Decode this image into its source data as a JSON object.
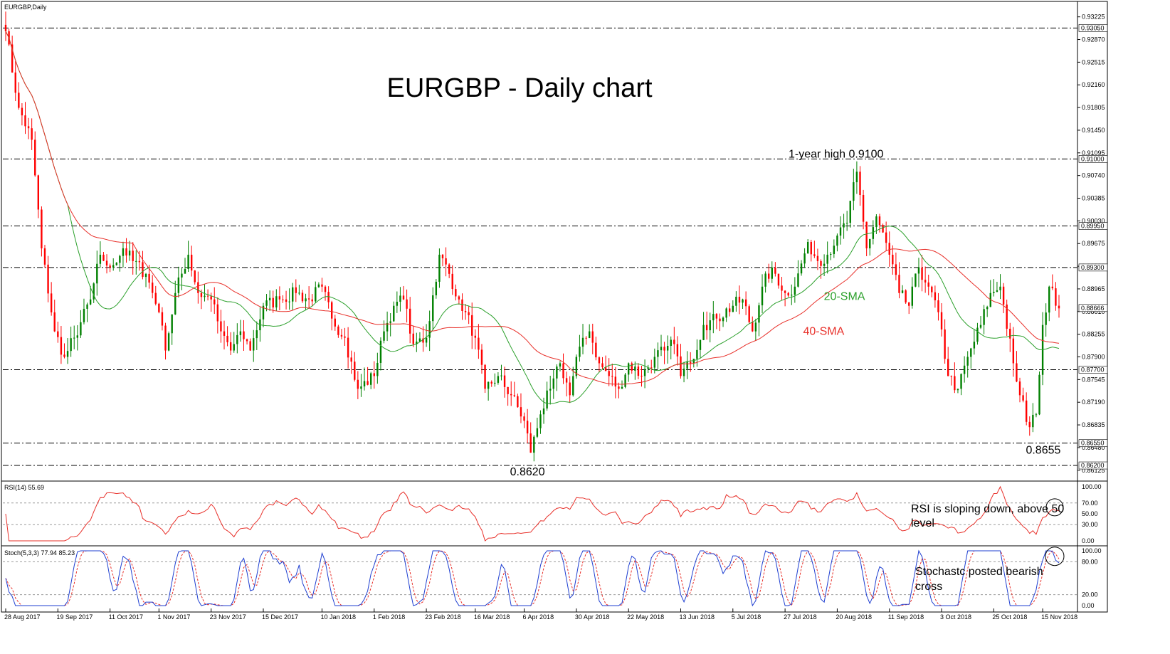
{
  "window_title": "EURGBP,Daily",
  "colors": {
    "bull": "#008000",
    "bear": "#ff0000",
    "sma20": "#2ca02c",
    "sma40": "#e8302a",
    "level_line": "#000000",
    "rsi": "#e8302a",
    "stoch_main": "#1f3fd1",
    "stoch_signal": "#e8302a"
  },
  "chart_data": [
    {
      "type": "candlestick",
      "title": "EURGBP - Daily chart",
      "ylim": [
        0.86,
        0.93422
      ],
      "y_ticks": [
        "0.93225",
        "0.92870",
        "0.92515",
        "0.92160",
        "0.91805",
        "0.91450",
        "0.91095",
        "0.90740",
        "0.90385",
        "0.90030",
        "0.89675",
        "0.89320",
        "0.88965",
        "0.88610",
        "0.88255",
        "0.87900",
        "0.87545",
        "0.87190",
        "0.86835",
        "0.86480",
        "0.86125"
      ],
      "x_ticks": [
        "28 Aug 2017",
        "19 Sep 2017",
        "11 Oct 2017",
        "1 Nov 2017",
        "23 Nov 2017",
        "15 Dec 2017",
        "10 Jan 2018",
        "1 Feb 2018",
        "23 Feb 2018",
        "16 Mar 2018",
        "6 Apr 2018",
        "30 Apr 2018",
        "22 May 2018",
        "13 Jun 2018",
        "5 Jul 2018",
        "27 Jul 2018",
        "20 Aug 2018",
        "11 Sep 2018",
        "3 Oct 2018",
        "25 Oct 2018",
        "15 Nov 2018"
      ],
      "levels": [
        {
          "value": 0.9305,
          "label": "0.93050"
        },
        {
          "value": 0.91,
          "label": "0.91000"
        },
        {
          "value": 0.8995,
          "label": "0.89950"
        },
        {
          "value": 0.893,
          "label": "0.89300"
        },
        {
          "value": 0.877,
          "label": "0.87700"
        },
        {
          "value": 0.8655,
          "label": "0.86550"
        },
        {
          "value": 0.862,
          "label": "0.86200"
        }
      ],
      "current_price": {
        "value": 0.88666,
        "label": "0.88666"
      },
      "anchors": [
        {
          "date": "28 Aug 2017",
          "close": 0.93
        },
        {
          "date": "1 Sep 2017",
          "close": 0.918
        },
        {
          "date": "7 Sep 2017",
          "close": 0.913
        },
        {
          "date": "12 Sep 2017",
          "close": 0.896
        },
        {
          "date": "18 Sep 2017",
          "close": 0.883
        },
        {
          "date": "21 Sep 2017",
          "close": 0.879
        },
        {
          "date": "26 Sep 2017",
          "close": 0.882
        },
        {
          "date": "3 Oct 2017",
          "close": 0.888
        },
        {
          "date": "6 Oct 2017",
          "close": 0.895
        },
        {
          "date": "11 Oct 2017",
          "close": 0.893
        },
        {
          "date": "17 Oct 2017",
          "close": 0.896
        },
        {
          "date": "20 Oct 2017",
          "close": 0.894
        },
        {
          "date": "26 Oct 2017",
          "close": 0.892
        },
        {
          "date": "1 Nov 2017",
          "close": 0.886
        },
        {
          "date": "3 Nov 2017",
          "close": 0.88
        },
        {
          "date": "8 Nov 2017",
          "close": 0.889
        },
        {
          "date": "14 Nov 2017",
          "close": 0.895
        },
        {
          "date": "17 Nov 2017",
          "close": 0.889
        },
        {
          "date": "23 Nov 2017",
          "close": 0.888
        },
        {
          "date": "28 Nov 2017",
          "close": 0.883
        },
        {
          "date": "1 Dec 2017",
          "close": 0.88
        },
        {
          "date": "6 Dec 2017",
          "close": 0.883
        },
        {
          "date": "11 Dec 2017",
          "close": 0.88
        },
        {
          "date": "15 Dec 2017",
          "close": 0.887
        },
        {
          "date": "22 Dec 2017",
          "close": 0.888
        },
        {
          "date": "29 Dec 2017",
          "close": 0.889
        },
        {
          "date": "4 Jan 2018",
          "close": 0.888
        },
        {
          "date": "10 Jan 2018",
          "close": 0.89
        },
        {
          "date": "15 Jan 2018",
          "close": 0.885
        },
        {
          "date": "19 Jan 2018",
          "close": 0.882
        },
        {
          "date": "25 Jan 2018",
          "close": 0.874
        },
        {
          "date": "1 Feb 2018",
          "close": 0.876
        },
        {
          "date": "6 Feb 2018",
          "close": 0.883
        },
        {
          "date": "9 Feb 2018",
          "close": 0.887
        },
        {
          "date": "14 Feb 2018",
          "close": 0.888
        },
        {
          "date": "19 Feb 2018",
          "close": 0.881
        },
        {
          "date": "23 Feb 2018",
          "close": 0.882
        },
        {
          "date": "1 Mar 2018",
          "close": 0.895
        },
        {
          "date": "6 Mar 2018",
          "close": 0.892
        },
        {
          "date": "9 Mar 2018",
          "close": 0.888
        },
        {
          "date": "13 Mar 2018",
          "close": 0.886
        },
        {
          "date": "16 Mar 2018",
          "close": 0.882
        },
        {
          "date": "21 Mar 2018",
          "close": 0.874
        },
        {
          "date": "27 Mar 2018",
          "close": 0.876
        },
        {
          "date": "2 Apr 2018",
          "close": 0.873
        },
        {
          "date": "6 Apr 2018",
          "close": 0.869
        },
        {
          "date": "10 Apr 2018",
          "close": 0.864
        },
        {
          "date": "13 Apr 2018",
          "close": 0.87
        },
        {
          "date": "18 Apr 2018",
          "close": 0.874
        },
        {
          "date": "23 Apr 2018",
          "close": 0.878
        },
        {
          "date": "26 Apr 2018",
          "close": 0.873
        },
        {
          "date": "30 Apr 2018",
          "close": 0.879
        },
        {
          "date": "4 May 2018",
          "close": 0.883
        },
        {
          "date": "9 May 2018",
          "close": 0.878
        },
        {
          "date": "14 May 2018",
          "close": 0.876
        },
        {
          "date": "17 May 2018",
          "close": 0.874
        },
        {
          "date": "22 May 2018",
          "close": 0.878
        },
        {
          "date": "28 May 2018",
          "close": 0.876
        },
        {
          "date": "1 Jun 2018",
          "close": 0.879
        },
        {
          "date": "6 Jun 2018",
          "close": 0.88
        },
        {
          "date": "11 Jun 2018",
          "close": 0.881
        },
        {
          "date": "13 Jun 2018",
          "close": 0.876
        },
        {
          "date": "18 Jun 2018",
          "close": 0.878
        },
        {
          "date": "22 Jun 2018",
          "close": 0.884
        },
        {
          "date": "28 Jun 2018",
          "close": 0.885
        },
        {
          "date": "5 Jul 2018",
          "close": 0.887
        },
        {
          "date": "10 Jul 2018",
          "close": 0.888
        },
        {
          "date": "13 Jul 2018",
          "close": 0.883
        },
        {
          "date": "18 Jul 2018",
          "close": 0.89
        },
        {
          "date": "23 Jul 2018",
          "close": 0.893
        },
        {
          "date": "27 Jul 2018",
          "close": 0.889
        },
        {
          "date": "1 Aug 2018",
          "close": 0.89
        },
        {
          "date": "7 Aug 2018",
          "close": 0.897
        },
        {
          "date": "10 Aug 2018",
          "close": 0.894
        },
        {
          "date": "15 Aug 2018",
          "close": 0.895
        },
        {
          "date": "20 Aug 2018",
          "close": 0.898
        },
        {
          "date": "23 Aug 2018",
          "close": 0.9
        },
        {
          "date": "28 Aug 2018",
          "close": 0.908
        },
        {
          "date": "31 Aug 2018",
          "close": 0.896
        },
        {
          "date": "5 Sep 2018",
          "close": 0.901
        },
        {
          "date": "11 Sep 2018",
          "close": 0.895
        },
        {
          "date": "14 Sep 2018",
          "close": 0.889
        },
        {
          "date": "19 Sep 2018",
          "close": 0.887
        },
        {
          "date": "24 Sep 2018",
          "close": 0.893
        },
        {
          "date": "27 Sep 2018",
          "close": 0.89
        },
        {
          "date": "2 Oct 2018",
          "close": 0.886
        },
        {
          "date": "5 Oct 2018",
          "close": 0.876
        },
        {
          "date": "10 Oct 2018",
          "close": 0.874
        },
        {
          "date": "15 Oct 2018",
          "close": 0.879
        },
        {
          "date": "19 Oct 2018",
          "close": 0.884
        },
        {
          "date": "24 Oct 2018",
          "close": 0.889
        },
        {
          "date": "29 Oct 2018",
          "close": 0.89
        },
        {
          "date": "2 Nov 2018",
          "close": 0.878
        },
        {
          "date": "6 Nov 2018",
          "close": 0.873
        },
        {
          "date": "9 Nov 2018",
          "close": 0.868
        },
        {
          "date": "13 Nov 2018",
          "close": 0.87
        },
        {
          "date": "15 Nov 2018",
          "close": 0.884
        },
        {
          "date": "19 Nov 2018",
          "close": 0.89
        },
        {
          "date": "22 Nov 2018",
          "close": 0.8866
        }
      ],
      "series": [
        {
          "name": "20-SMA"
        },
        {
          "name": "40-SMA"
        }
      ],
      "annotations": [
        {
          "text": "1-year high 0.9100",
          "price": 0.91,
          "date": "24 Aug 2018"
        },
        {
          "text": "0.8620",
          "price": 0.862,
          "date": "9 Apr 2018"
        },
        {
          "text": "0.8655",
          "price": 0.8655,
          "date": "13 Nov 2018"
        }
      ]
    },
    {
      "type": "line",
      "title": "RSI(14) 55.69",
      "ylim": [
        0,
        100
      ],
      "y_ticks": [
        "100.00",
        "70.00",
        "50.00",
        "30.00",
        "0.00"
      ],
      "last_value": 55.69,
      "annotation": "RSI is sloping down, above 50 level"
    },
    {
      "type": "line",
      "title": "Stoch(5,3,3) 77.94 85.23",
      "ylim": [
        0,
        100
      ],
      "y_ticks": [
        "100.00",
        "80.00",
        "20.00",
        "0.00"
      ],
      "main_last": 77.94,
      "signal_last": 85.23,
      "annotation": "Stochastc posted bearish cross"
    }
  ]
}
